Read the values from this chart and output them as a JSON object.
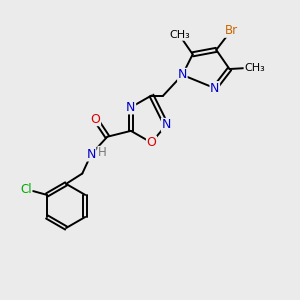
{
  "background_color": "#ebebeb",
  "bond_color": "#000000",
  "atom_colors": {
    "N": "#0000cc",
    "O": "#dd0000",
    "Cl": "#00aa00",
    "Br": "#cc6600",
    "H": "#777777",
    "C": "#000000"
  },
  "figsize": [
    3.0,
    3.0
  ],
  "dpi": 100
}
